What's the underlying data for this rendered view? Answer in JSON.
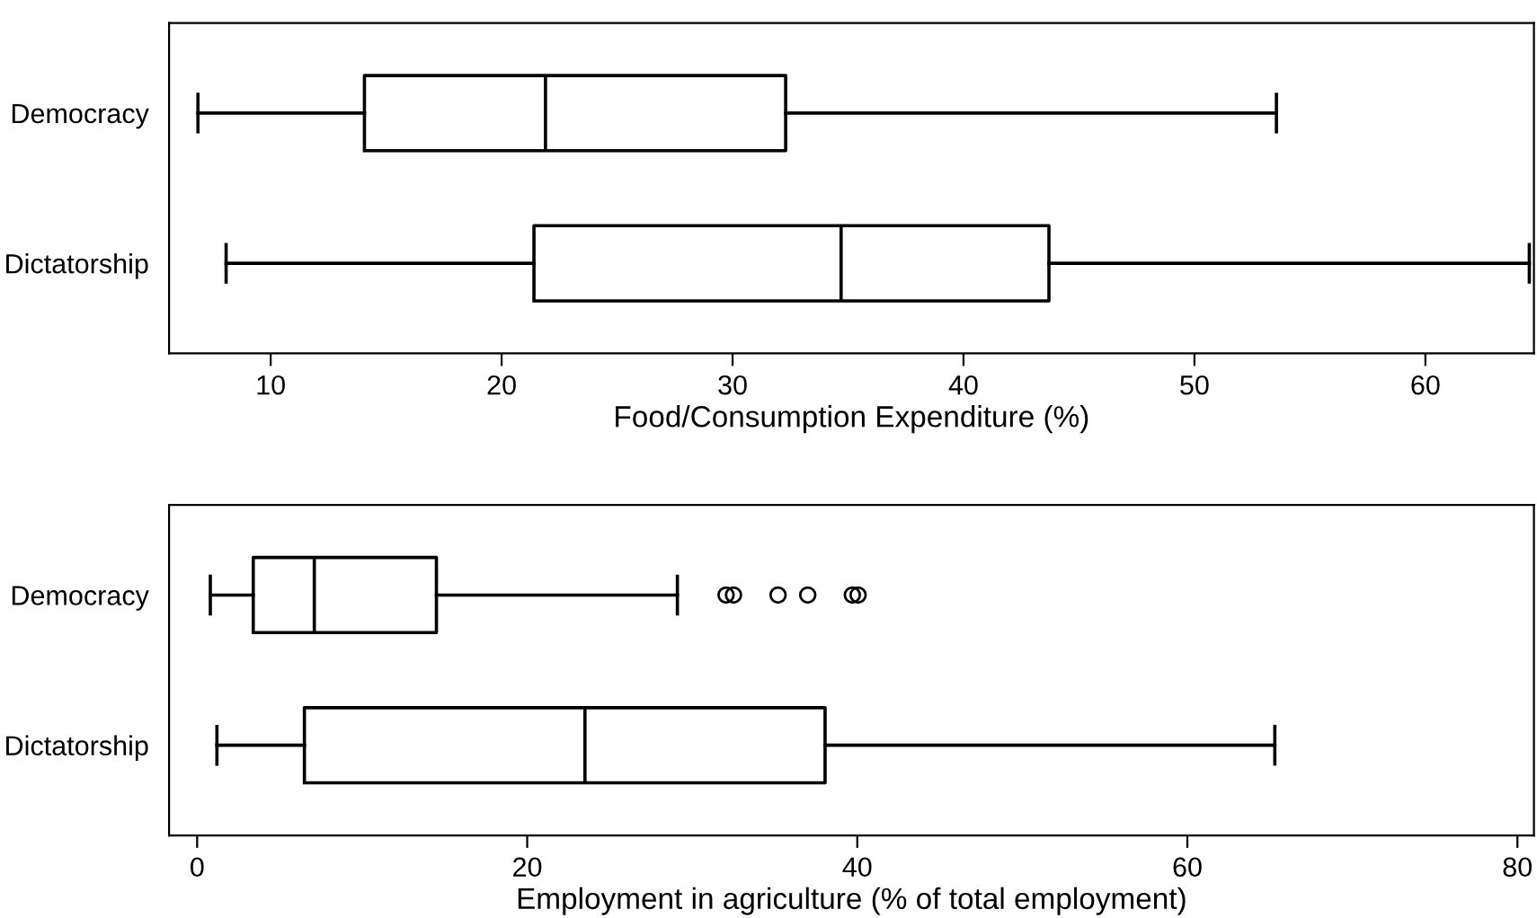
{
  "chart_data": [
    {
      "type": "box",
      "orientation": "horizontal",
      "categories": [
        "Democracy",
        "Dictatorship"
      ],
      "xlabel": "Food/Consumption Expenditure (%)",
      "xlim": [
        5.6,
        64.7
      ],
      "xticks": [
        10,
        20,
        30,
        40,
        50,
        60
      ],
      "grid": false,
      "legend": false,
      "boxes": [
        {
          "low": 6.85,
          "q1": 14.06,
          "median": 21.9,
          "q3": 32.3,
          "high": 53.55
        },
        {
          "low": 8.07,
          "q1": 21.4,
          "median": 34.7,
          "q3": 43.7,
          "high": 64.5
        }
      ]
    },
    {
      "type": "box",
      "orientation": "horizontal",
      "categories": [
        "Democracy",
        "Dictatorship"
      ],
      "xlabel": "Employment in agriculture (% of total employment)",
      "xlim": [
        -1.7,
        81
      ],
      "xticks": [
        0,
        20,
        40,
        60,
        80
      ],
      "grid": false,
      "legend": false,
      "boxes": [
        {
          "low": 0.8,
          "q1": 3.4,
          "median": 7.1,
          "q3": 14.5,
          "high": 29.1,
          "outliers": [
            32.05,
            32.5,
            35.2,
            37.0,
            39.7,
            40.05
          ]
        },
        {
          "low": 1.2,
          "q1": 6.5,
          "median": 23.5,
          "q3": 38.05,
          "high": 65.3
        }
      ]
    }
  ]
}
